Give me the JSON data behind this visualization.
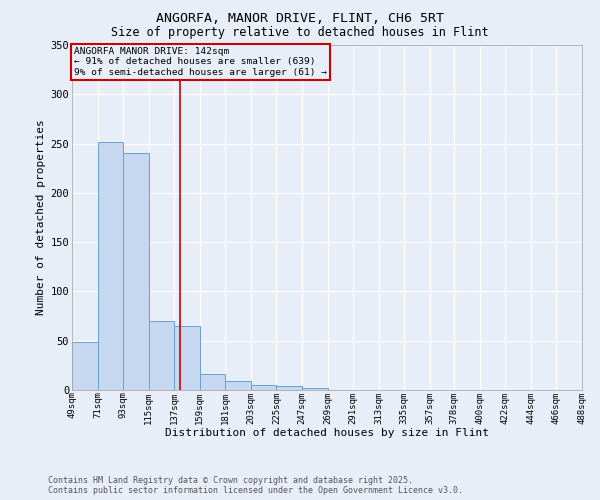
{
  "title1": "ANGORFA, MANOR DRIVE, FLINT, CH6 5RT",
  "title2": "Size of property relative to detached houses in Flint",
  "xlabel": "Distribution of detached houses by size in Flint",
  "ylabel": "Number of detached properties",
  "bin_edges": [
    49,
    71,
    93,
    115,
    137,
    159,
    181,
    203,
    225,
    247,
    269,
    291,
    313,
    335,
    357,
    378,
    400,
    422,
    444,
    466,
    488
  ],
  "bar_heights": [
    49,
    252,
    240,
    70,
    65,
    16,
    9,
    5,
    4,
    2,
    0,
    0,
    0,
    0,
    0,
    0,
    0,
    0,
    0,
    0
  ],
  "bar_color": "#c5d8f0",
  "bar_edge_color": "#6aa0d4",
  "property_size": 142,
  "red_line_color": "#cc0000",
  "annotation_title": "ANGORFA MANOR DRIVE: 142sqm",
  "annotation_line2": "← 91% of detached houses are smaller (639)",
  "annotation_line3": "9% of semi-detached houses are larger (61) →",
  "annotation_box_color": "#cc0000",
  "ylim": [
    0,
    350
  ],
  "yticks": [
    0,
    50,
    100,
    150,
    200,
    250,
    300,
    350
  ],
  "background_color": "#e8eef8",
  "grid_color": "#ffffff",
  "footer_line1": "Contains HM Land Registry data © Crown copyright and database right 2025.",
  "footer_line2": "Contains public sector information licensed under the Open Government Licence v3.0."
}
